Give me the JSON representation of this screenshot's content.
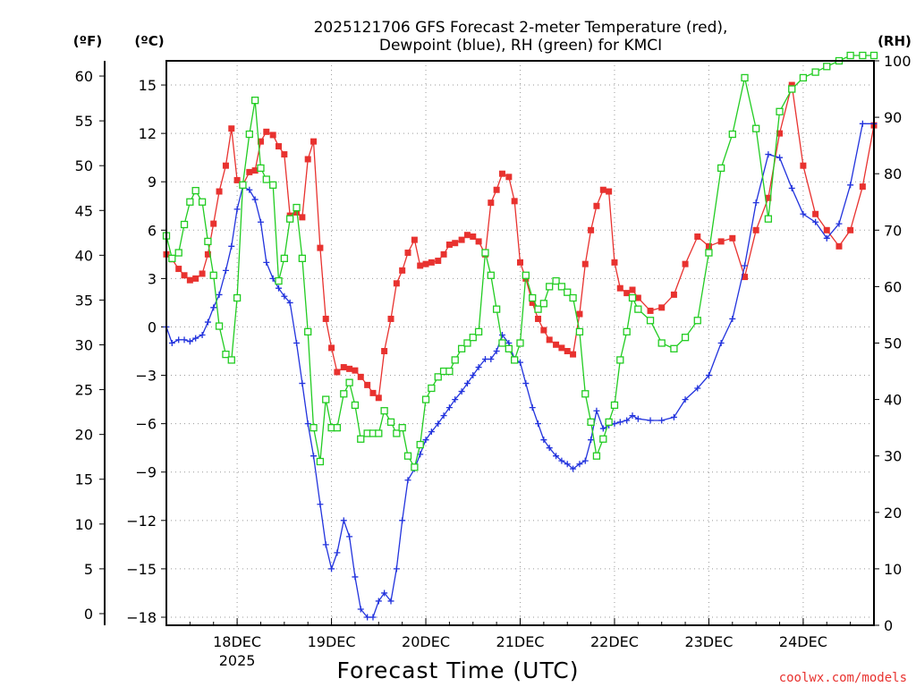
{
  "chart_data": {
    "type": "line",
    "title": [
      "2025121706 GFS Forecast 2-meter Temperature (red),",
      "Dewpoint (blue), RH (green) for KMCI"
    ],
    "xlabel": "Forecast Time (UTC)",
    "credit": "coolwx.com/models",
    "units": {
      "fahrenheit": "(ºF)",
      "celsius": "(ºC)",
      "rh": "(RH)"
    },
    "x_ticks": [
      {
        "day": 18,
        "label": "18DEC",
        "sublabel": "2025"
      },
      {
        "day": 19,
        "label": "19DEC",
        "sublabel": ""
      },
      {
        "day": 20,
        "label": "20DEC",
        "sublabel": ""
      },
      {
        "day": 21,
        "label": "21DEC",
        "sublabel": ""
      },
      {
        "day": 22,
        "label": "22DEC",
        "sublabel": ""
      },
      {
        "day": 23,
        "label": "23DEC",
        "sublabel": ""
      },
      {
        "day": 24,
        "label": "24DEC",
        "sublabel": ""
      }
    ],
    "xlim": [
      17.25,
      24.75
    ],
    "ylim_celsius": [
      -18.5,
      16.5
    ],
    "celsius_ticks": [
      "15",
      "12",
      "9",
      "6",
      "3",
      "0",
      "−3",
      "−6",
      "−9",
      "−12",
      "−15",
      "−18"
    ],
    "fahrenheit_ticks": [
      "60",
      "55",
      "50",
      "45",
      "40",
      "35",
      "30",
      "25",
      "20",
      "15",
      "10",
      "5",
      "0"
    ],
    "rh_ticks": [
      "100",
      "90",
      "80",
      "70",
      "60",
      "50",
      "40",
      "30",
      "20",
      "10",
      "0"
    ],
    "grid": true,
    "colors": {
      "temperature": "#e8322f",
      "dewpoint": "#2233dd",
      "rh": "#22cc22"
    },
    "series": [
      {
        "axis": "celsius",
        "marker": "filled-square",
        "x": [
          17.25,
          17.31,
          17.38,
          17.44,
          17.5,
          17.56,
          17.63,
          17.69,
          17.75,
          17.81,
          17.88,
          17.94,
          18.0,
          18.06,
          18.13,
          18.19,
          18.25,
          18.31,
          18.38,
          18.44,
          18.5,
          18.56,
          18.63,
          18.69,
          18.75,
          18.81,
          18.88,
          18.94,
          19.0,
          19.06,
          19.13,
          19.19,
          19.25,
          19.31,
          19.38,
          19.44,
          19.5,
          19.56,
          19.63,
          19.69,
          19.75,
          19.81,
          19.88,
          19.94,
          20.0,
          20.06,
          20.13,
          20.19,
          20.25,
          20.31,
          20.38,
          20.44,
          20.5,
          20.56,
          20.63,
          20.69,
          20.75,
          20.81,
          20.88,
          20.94,
          21.0,
          21.06,
          21.13,
          21.19,
          21.25,
          21.31,
          21.38,
          21.44,
          21.5,
          21.56,
          21.63,
          21.69,
          21.75,
          21.81,
          21.88,
          21.94,
          22.0,
          22.06,
          22.13,
          22.19,
          22.25,
          22.38,
          22.5,
          22.63,
          22.75,
          22.88,
          23.0,
          23.13,
          23.25,
          23.38,
          23.5,
          23.63,
          23.75,
          23.88,
          24.0,
          24.13,
          24.25,
          24.38,
          24.5,
          24.63,
          24.75
        ],
        "y": [
          4.5,
          4.2,
          3.6,
          3.2,
          2.9,
          3.0,
          3.3,
          4.5,
          6.4,
          8.4,
          10.0,
          12.3,
          9.1,
          8.8,
          9.6,
          9.7,
          11.5,
          12.1,
          11.9,
          11.2,
          10.7,
          6.9,
          7.1,
          6.8,
          10.4,
          11.5,
          4.9,
          0.5,
          -1.3,
          -2.8,
          -2.5,
          -2.6,
          -2.7,
          -3.1,
          -3.6,
          -4.1,
          -4.4,
          -1.5,
          0.5,
          2.7,
          3.5,
          4.6,
          5.4,
          3.8,
          3.9,
          4.0,
          4.1,
          4.5,
          5.1,
          5.2,
          5.4,
          5.7,
          5.6,
          5.3,
          4.5,
          7.7,
          8.5,
          9.5,
          9.3,
          7.8,
          4.0,
          3.0,
          1.5,
          0.5,
          -0.2,
          -0.8,
          -1.1,
          -1.3,
          -1.5,
          -1.7,
          0.8,
          3.9,
          6.0,
          7.5,
          8.5,
          8.4,
          4.0,
          2.4,
          2.1,
          2.3,
          1.8,
          1.0,
          1.2,
          2.0,
          3.9,
          5.6,
          5.0,
          5.3,
          5.5,
          3.1,
          6.0,
          8.0,
          12.0,
          15.0,
          10.0,
          7.0,
          6.0,
          5.0,
          6.0,
          8.7,
          12.5
        ]
      },
      {
        "axis": "celsius",
        "marker": "plus",
        "x": [
          17.25,
          17.31,
          17.38,
          17.44,
          17.5,
          17.56,
          17.63,
          17.69,
          17.75,
          17.81,
          17.88,
          17.94,
          18.0,
          18.06,
          18.13,
          18.19,
          18.25,
          18.31,
          18.38,
          18.44,
          18.5,
          18.56,
          18.63,
          18.69,
          18.75,
          18.81,
          18.88,
          18.94,
          19.0,
          19.06,
          19.13,
          19.19,
          19.25,
          19.31,
          19.38,
          19.44,
          19.5,
          19.56,
          19.63,
          19.69,
          19.75,
          19.81,
          19.88,
          19.94,
          20.0,
          20.06,
          20.13,
          20.19,
          20.25,
          20.31,
          20.38,
          20.44,
          20.5,
          20.56,
          20.63,
          20.69,
          20.75,
          20.81,
          20.88,
          20.94,
          21.0,
          21.06,
          21.13,
          21.19,
          21.25,
          21.31,
          21.38,
          21.44,
          21.5,
          21.56,
          21.63,
          21.69,
          21.75,
          21.81,
          21.88,
          21.94,
          22.0,
          22.06,
          22.13,
          22.19,
          22.25,
          22.38,
          22.5,
          22.63,
          22.75,
          22.88,
          23.0,
          23.13,
          23.25,
          23.38,
          23.5,
          23.63,
          23.75,
          23.88,
          24.0,
          24.13,
          24.25,
          24.38,
          24.5,
          24.63,
          24.75
        ],
        "y": [
          0.0,
          -1.0,
          -0.8,
          -0.8,
          -0.9,
          -0.7,
          -0.5,
          0.3,
          1.2,
          2.0,
          3.5,
          5.0,
          7.3,
          8.7,
          8.5,
          7.9,
          6.5,
          4.0,
          3.0,
          2.4,
          1.9,
          1.5,
          -1.0,
          -3.5,
          -6.0,
          -8.0,
          -11.0,
          -13.5,
          -15.0,
          -14.0,
          -12.0,
          -13.0,
          -15.5,
          -17.5,
          -18.0,
          -18.0,
          -17.0,
          -16.5,
          -17.0,
          -15.0,
          -12.0,
          -9.5,
          -8.8,
          -7.9,
          -7.0,
          -6.5,
          -6.0,
          -5.5,
          -5.0,
          -4.5,
          -4.0,
          -3.5,
          -3.0,
          -2.5,
          -2.0,
          -2.0,
          -1.5,
          -0.5,
          -1.0,
          -2.0,
          -2.2,
          -3.5,
          -5.0,
          -6.0,
          -7.0,
          -7.5,
          -8.0,
          -8.3,
          -8.5,
          -8.8,
          -8.5,
          -8.3,
          -7.0,
          -5.2,
          -6.3,
          -6.1,
          -6.0,
          -5.9,
          -5.8,
          -5.5,
          -5.7,
          -5.8,
          -5.8,
          -5.6,
          -4.5,
          -3.8,
          -3.0,
          -1.0,
          0.5,
          3.8,
          7.7,
          10.7,
          10.5,
          8.6,
          7.0,
          6.5,
          5.5,
          6.4,
          8.8,
          12.6,
          12.6
        ]
      },
      {
        "axis": "rh",
        "marker": "open-square",
        "x": [
          17.25,
          17.31,
          17.38,
          17.44,
          17.5,
          17.56,
          17.63,
          17.69,
          17.75,
          17.81,
          17.88,
          17.94,
          18.0,
          18.06,
          18.13,
          18.19,
          18.25,
          18.31,
          18.38,
          18.44,
          18.5,
          18.56,
          18.63,
          18.69,
          18.75,
          18.81,
          18.88,
          18.94,
          19.0,
          19.06,
          19.13,
          19.19,
          19.25,
          19.31,
          19.38,
          19.44,
          19.5,
          19.56,
          19.63,
          19.69,
          19.75,
          19.81,
          19.88,
          19.94,
          20.0,
          20.06,
          20.13,
          20.19,
          20.25,
          20.31,
          20.38,
          20.44,
          20.5,
          20.56,
          20.63,
          20.69,
          20.75,
          20.81,
          20.88,
          20.94,
          21.0,
          21.06,
          21.13,
          21.19,
          21.25,
          21.31,
          21.38,
          21.44,
          21.5,
          21.56,
          21.63,
          21.69,
          21.75,
          21.81,
          21.88,
          21.94,
          22.0,
          22.06,
          22.13,
          22.19,
          22.25,
          22.38,
          22.5,
          22.63,
          22.75,
          22.88,
          23.0,
          23.13,
          23.25,
          23.38,
          23.5,
          23.63,
          23.75,
          23.88,
          24.0,
          24.13,
          24.25,
          24.38,
          24.5,
          24.63,
          24.75
        ],
        "y": [
          69,
          65,
          66,
          71,
          75,
          77,
          75,
          68,
          62,
          53,
          48,
          47,
          58,
          78,
          87,
          93,
          81,
          79,
          78,
          61,
          65,
          72,
          74,
          65,
          52,
          35,
          29,
          40,
          35,
          35,
          41,
          43,
          39,
          33,
          34,
          34,
          34,
          38,
          36,
          34,
          35,
          30,
          28,
          32,
          40,
          42,
          44,
          45,
          45,
          47,
          49,
          50,
          51,
          52,
          66,
          62,
          56,
          50,
          49,
          47,
          50,
          62,
          58,
          56,
          57,
          60,
          61,
          60,
          59,
          58,
          52,
          41,
          36,
          30,
          33,
          36,
          39,
          47,
          52,
          58,
          56,
          54,
          50,
          49,
          51,
          54,
          66,
          81,
          87,
          97,
          88,
          72,
          91,
          95,
          97,
          98,
          99,
          100,
          101,
          101,
          101
        ]
      }
    ]
  }
}
